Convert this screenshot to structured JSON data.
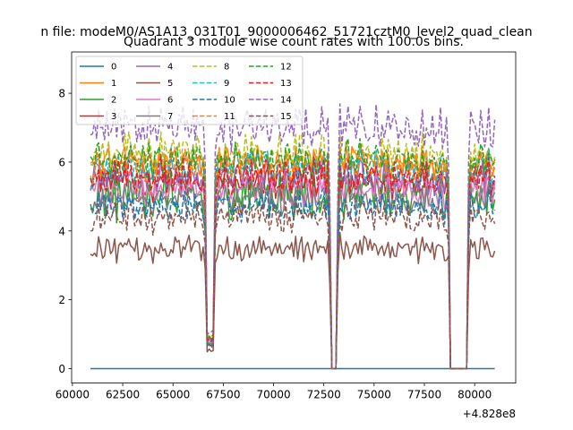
{
  "chart_data": {
    "type": "line",
    "suptitle": "n file: modeM0/AS1A13_031T01_9000006462_51721cztM0_level2_quad_clean",
    "title": "Quadrant 3 module wise count rates with 100.0s bins.",
    "xlabel": "",
    "ylabel": "",
    "offset_label": "+4.828e8",
    "xlim": [
      59960,
      82040
    ],
    "ylim": [
      -0.42,
      9.2
    ],
    "x_ticks": [
      60000,
      62500,
      65000,
      67500,
      70000,
      72500,
      75000,
      77500,
      80000
    ],
    "x_tick_labels": [
      "60000",
      "62500",
      "65000",
      "67500",
      "70000",
      "72500",
      "75000",
      "77500",
      "80000"
    ],
    "y_ticks": [
      0,
      2,
      4,
      6,
      8
    ],
    "y_tick_labels": [
      "0",
      "2",
      "4",
      "6",
      "8"
    ],
    "time_range": [
      60900,
      81000
    ],
    "bin_size_s": 100,
    "gaps": [
      {
        "start": 66700,
        "end": 67000,
        "min_factor": 0.15
      },
      {
        "start": 72850,
        "end": 73150,
        "min_factor": 0.0
      },
      {
        "start": 78800,
        "end": 79600,
        "min_factor": 0.0
      }
    ],
    "legend_position": "upper-left",
    "series": [
      {
        "name": "0",
        "mean": 0.0,
        "noise": 0.0,
        "color": "#1f77b4",
        "dash": false
      },
      {
        "name": "1",
        "mean": 6.0,
        "noise": 0.35,
        "color": "#ff7f0e",
        "dash": false
      },
      {
        "name": "2",
        "mean": 5.0,
        "noise": 0.6,
        "color": "#2ca02c",
        "dash": false
      },
      {
        "name": "3",
        "mean": 5.4,
        "noise": 0.35,
        "color": "#d62728",
        "dash": false
      },
      {
        "name": "4",
        "mean": 5.6,
        "noise": 0.35,
        "color": "#9467bd",
        "dash": false
      },
      {
        "name": "5",
        "mean": 3.5,
        "noise": 0.3,
        "color": "#8c564b",
        "dash": false
      },
      {
        "name": "6",
        "mean": 5.2,
        "noise": 0.35,
        "color": "#e377c2",
        "dash": false
      },
      {
        "name": "7",
        "mean": 4.9,
        "noise": 0.3,
        "color": "#7f7f7f",
        "dash": false
      },
      {
        "name": "8",
        "mean": 6.3,
        "noise": 0.35,
        "color": "#bcbd22",
        "dash": true
      },
      {
        "name": "9",
        "mean": 5.8,
        "noise": 0.35,
        "color": "#17becf",
        "dash": true
      },
      {
        "name": "10",
        "mean": 4.7,
        "noise": 0.35,
        "color": "#1f77b4",
        "dash": true
      },
      {
        "name": "11",
        "mean": 5.9,
        "noise": 0.35,
        "color": "#ff7f0e",
        "dash": true
      },
      {
        "name": "12",
        "mean": 6.1,
        "noise": 0.35,
        "color": "#2ca02c",
        "dash": true
      },
      {
        "name": "13",
        "mean": 5.6,
        "noise": 0.35,
        "color": "#d62728",
        "dash": true
      },
      {
        "name": "14",
        "mean": 7.0,
        "noise": 0.45,
        "color": "#9467bd",
        "dash": true
      },
      {
        "name": "15",
        "mean": 4.4,
        "noise": 0.35,
        "color": "#8c564b",
        "dash": true
      }
    ]
  }
}
